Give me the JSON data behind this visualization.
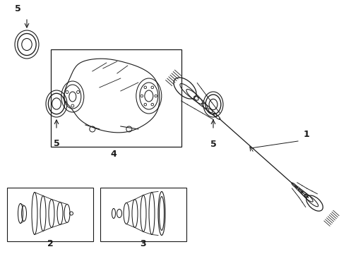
{
  "bg_color": "#ffffff",
  "line_color": "#1a1a1a",
  "font_size": 9,
  "fig_width": 4.9,
  "fig_height": 3.6,
  "dpi": 100
}
